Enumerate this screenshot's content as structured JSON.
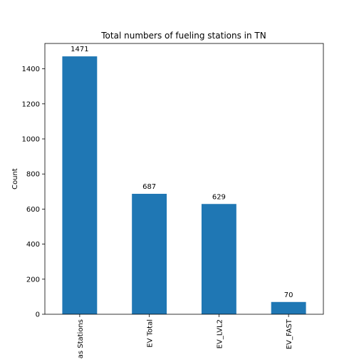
{
  "chart_data": {
    "type": "bar",
    "title": "Total numbers of fueling stations in TN",
    "xlabel": "",
    "ylabel": "Count",
    "categories": [
      "Gas Stations",
      "EV Total",
      "EV_LVL2",
      "EV_FAST"
    ],
    "values": [
      1471,
      687,
      629,
      70
    ],
    "data_labels": [
      "1471",
      "687",
      "629",
      "70"
    ],
    "yticks": [
      0,
      200,
      400,
      600,
      800,
      1000,
      1200,
      1400
    ],
    "ylim": [
      0,
      1544.55
    ],
    "grid": false,
    "bar_color": "#1f77b4",
    "x_tick_rotation": 90
  }
}
